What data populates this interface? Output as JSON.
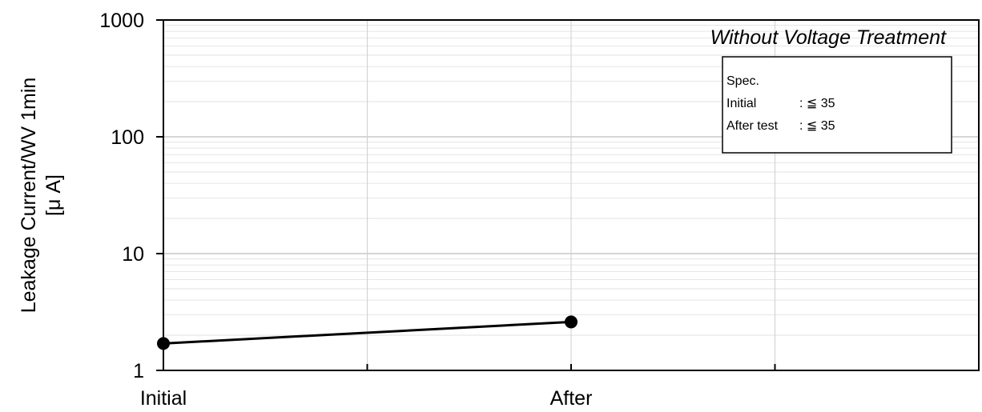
{
  "chart_data": {
    "type": "line",
    "y_scale": "log",
    "ylim": [
      1,
      1000
    ],
    "y_ticks": [
      "1",
      "10",
      "100",
      "1000"
    ],
    "categories": [
      "Initial",
      "",
      "After",
      ""
    ],
    "series": [
      {
        "points": [
          {
            "category": "Initial",
            "y": 1.7
          },
          {
            "category": "After",
            "y": 2.6
          }
        ],
        "color": "#000000"
      }
    ],
    "ylabel_line1": "Leakage Current/WV 1min",
    "ylabel_line2": "[μ A]",
    "annotation": "Without Voltage Treatment",
    "spec_box": {
      "title": "Spec.",
      "initial_label": "Initial",
      "initial_value": ": ≦ 35",
      "after_label": "After test",
      "after_value": ": ≦ 35"
    },
    "grid": true
  }
}
